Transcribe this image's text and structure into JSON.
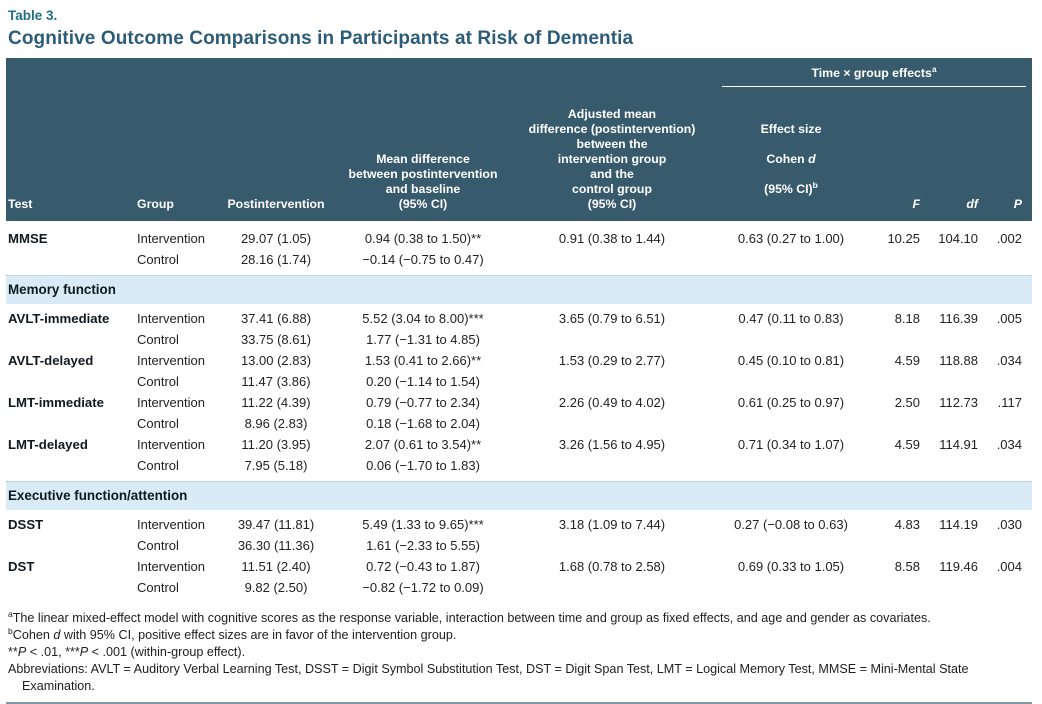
{
  "label": "Table 3.",
  "title": "Cognitive Outcome Comparisons in Participants at Risk of Dementia",
  "colors": {
    "header_bg": "#375A6C",
    "section_band_bg": "#D9EBF7",
    "table_label": "#1E6F85",
    "title": "#2D5C78",
    "bottom_rule": "#7E96A4"
  },
  "columns": {
    "test": "Test",
    "group": "Group",
    "post": "Postintervention",
    "mean": "Mean difference\nbetween postintervention\nand baseline\n(95% CI)",
    "adjusted": "Adjusted mean\ndifference (postintervention)\nbetween the\nintervention group\nand the\ncontrol group\n(95% CI)",
    "spanner": "Time × group effects",
    "spanner_sup": "a",
    "effect_l1": "Effect size",
    "effect_l2a": "Cohen ",
    "effect_l2b": "d",
    "effect_l3": "(95% CI)",
    "effect_sup": "b",
    "f": "F",
    "df": "df",
    "p": "P"
  },
  "sections": {
    "memory": "Memory function",
    "executive": "Executive function/attention"
  },
  "rows": [
    {
      "test": "MMSE",
      "group": "Intervention",
      "post": "29.07 (1.05)",
      "mean": "0.94 (0.38 to 1.50)**",
      "adj": "0.91 (0.38 to 1.44)",
      "effect": "0.63 (0.27 to 1.00)",
      "f": "10.25",
      "df": "104.10",
      "p": ".002"
    },
    {
      "test": "",
      "group": "Control",
      "post": "28.16 (1.74)",
      "mean": "−0.14 (−0.75 to 0.47)",
      "adj": "",
      "effect": "",
      "f": "",
      "df": "",
      "p": ""
    },
    {
      "test": "AVLT-immediate",
      "group": "Intervention",
      "post": "37.41 (6.88)",
      "mean": "5.52 (3.04 to 8.00)***",
      "adj": "3.65 (0.79 to 6.51)",
      "effect": "0.47 (0.11 to 0.83)",
      "f": "8.18",
      "df": "116.39",
      "p": ".005"
    },
    {
      "test": "",
      "group": "Control",
      "post": "33.75 (8.61)",
      "mean": "1.77 (−1.31 to 4.85)",
      "adj": "",
      "effect": "",
      "f": "",
      "df": "",
      "p": ""
    },
    {
      "test": "AVLT-delayed",
      "group": "Intervention",
      "post": "13.00 (2.83)",
      "mean": "1.53 (0.41 to 2.66)**",
      "adj": "1.53 (0.29 to 2.77)",
      "effect": "0.45 (0.10 to 0.81)",
      "f": "4.59",
      "df": "118.88",
      "p": ".034"
    },
    {
      "test": "",
      "group": "Control",
      "post": "11.47 (3.86)",
      "mean": "0.20 (−1.14 to 1.54)",
      "adj": "",
      "effect": "",
      "f": "",
      "df": "",
      "p": ""
    },
    {
      "test": "LMT-immediate",
      "group": "Intervention",
      "post": "11.22 (4.39)",
      "mean": "0.79 (−0.77 to 2.34)",
      "adj": "2.26 (0.49 to 4.02)",
      "effect": "0.61 (0.25 to 0.97)",
      "f": "2.50",
      "df": "112.73",
      "p": ".117"
    },
    {
      "test": "",
      "group": "Control",
      "post": "8.96 (2.83)",
      "mean": "0.18 (−1.68 to 2.04)",
      "adj": "",
      "effect": "",
      "f": "",
      "df": "",
      "p": ""
    },
    {
      "test": "LMT-delayed",
      "group": "Intervention",
      "post": "11.20 (3.95)",
      "mean": "2.07 (0.61 to 3.54)**",
      "adj": "3.26 (1.56 to 4.95)",
      "effect": "0.71 (0.34 to 1.07)",
      "f": "4.59",
      "df": "114.91",
      "p": ".034"
    },
    {
      "test": "",
      "group": "Control",
      "post": "7.95 (5.18)",
      "mean": "0.06 (−1.70 to 1.83)",
      "adj": "",
      "effect": "",
      "f": "",
      "df": "",
      "p": ""
    },
    {
      "test": "DSST",
      "group": "Intervention",
      "post": "39.47 (11.81)",
      "mean": "5.49 (1.33 to 9.65)***",
      "adj": "3.18 (1.09 to 7.44)",
      "effect": "0.27 (−0.08 to 0.63)",
      "f": "4.83",
      "df": "114.19",
      "p": ".030"
    },
    {
      "test": "",
      "group": "Control",
      "post": "36.30 (11.36)",
      "mean": "1.61 (−2.33 to 5.55)",
      "adj": "",
      "effect": "",
      "f": "",
      "df": "",
      "p": ""
    },
    {
      "test": "DST",
      "group": "Intervention",
      "post": "11.51 (2.40)",
      "mean": "0.72 (−0.43 to 1.87)",
      "adj": "1.68 (0.78 to 2.58)",
      "effect": "0.69 (0.33 to 1.05)",
      "f": "8.58",
      "df": "119.46",
      "p": ".004"
    },
    {
      "test": "",
      "group": "Control",
      "post": "9.82 (2.50)",
      "mean": "−0.82 (−1.72 to 0.09)",
      "adj": "",
      "effect": "",
      "f": "",
      "df": "",
      "p": ""
    }
  ],
  "footnotes": {
    "a_sup": "a",
    "a_text": "The linear mixed-effect model with cognitive scores as the response variable, interaction between time and group as fixed effects, and age and gender as covariates.",
    "b_sup": "b",
    "b_pre": "Cohen ",
    "b_it": "d",
    "b_rest": " with 95% CI, positive effect sizes are in favor of the intervention group.",
    "sig_1": "**",
    "sig_2": "P",
    "sig_3": " < .01, ***",
    "sig_4": "P",
    "sig_5": " < .001 (within-group effect).",
    "abbrev": "Abbreviations: AVLT = Auditory Verbal Learning Test, DSST = Digit Symbol Substitution Test, DST = Digit Span Test, LMT = Logical Memory Test, MMSE = Mini-Mental State Examination."
  }
}
